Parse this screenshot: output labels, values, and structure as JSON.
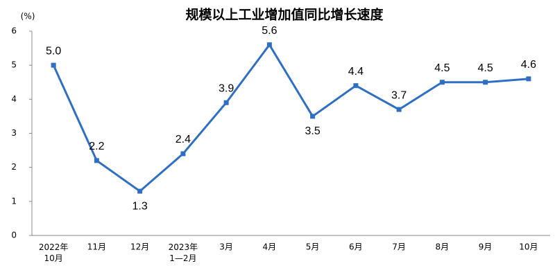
{
  "chart_data": {
    "type": "line",
    "title": "规模以上工业增加值同比增长速度",
    "y_label": "(%)",
    "categories": [
      "2022年\n10月",
      "11月",
      "12月",
      "2023年\n1—2月",
      "3月",
      "4月",
      "5月",
      "6月",
      "7月",
      "8月",
      "9月",
      "10月"
    ],
    "values": [
      5.0,
      2.2,
      1.3,
      2.4,
      3.9,
      5.6,
      3.5,
      4.4,
      3.7,
      4.5,
      4.5,
      4.6
    ],
    "value_labels": [
      "5.0",
      "2.2",
      "1.3",
      "2.4",
      "3.9",
      "5.6",
      "3.5",
      "4.4",
      "3.7",
      "4.5",
      "4.5",
      "4.6"
    ],
    "color": "#2e6fc4",
    "ylim": [
      0,
      6
    ],
    "yticks": [
      0,
      1,
      2,
      3,
      4,
      5,
      6
    ],
    "grid": false
  }
}
